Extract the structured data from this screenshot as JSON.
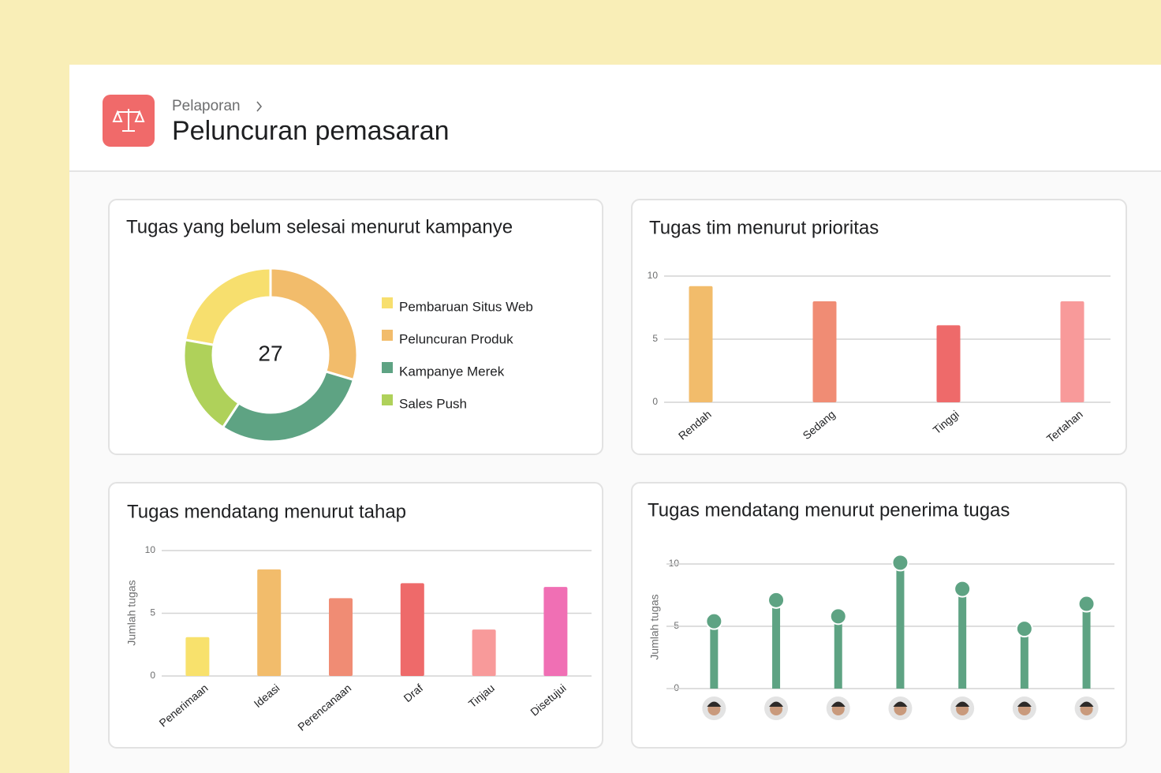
{
  "header": {
    "breadcrumb": "Pelaporan",
    "title": "Peluncuran pemasaran"
  },
  "chart_data": [
    {
      "type": "donut",
      "title": "Tugas yang belum selesai menurut kampanye",
      "total": 27,
      "categories": [
        "Pembaruan Situs Web",
        "Peluncuran Produk",
        "Kampanye Merek",
        "Sales Push"
      ],
      "values": [
        6,
        8,
        8,
        5
      ],
      "colors": [
        "#f7df6e",
        "#f2bc6b",
        "#5ea383",
        "#afd15a"
      ]
    },
    {
      "type": "bar",
      "title": "Tugas tim menurut prioritas",
      "categories": [
        "Rendah",
        "Sedang",
        "Tinggi",
        "Tertahan"
      ],
      "values": [
        9.2,
        8,
        6.1,
        8
      ],
      "colors": [
        "#f2bc6b",
        "#f08c74",
        "#ee6a6a",
        "#f89a9a"
      ],
      "ylim": [
        0,
        10
      ],
      "yticks": [
        0,
        5,
        10
      ],
      "grid": true
    },
    {
      "type": "bar",
      "title": "Tugas mendatang menurut tahap",
      "y_label": "Jumlah tugas",
      "categories": [
        "Penerimaan",
        "Ideasi",
        "Perencanaan",
        "Draf",
        "Tinjau",
        "Disetujui"
      ],
      "values": [
        3.1,
        8.5,
        6.2,
        7.4,
        3.7,
        7.1
      ],
      "colors": [
        "#f8e16c",
        "#f2bc6b",
        "#f08c74",
        "#ee6a6a",
        "#f89a9a",
        "#f06fb4"
      ],
      "ylim": [
        0,
        10
      ],
      "yticks": [
        0,
        5,
        10
      ],
      "grid": true
    },
    {
      "type": "lollipop",
      "title": "Tugas mendatang menurut penerima tugas",
      "y_label": "Jumlah tugas",
      "categories": [
        null,
        null,
        null,
        null,
        null,
        null,
        null
      ],
      "values": [
        5.4,
        7.1,
        5.8,
        10.1,
        8.0,
        4.8,
        6.8
      ],
      "color": "#5ea383",
      "ylim": [
        0,
        10
      ],
      "yticks": [
        0,
        5,
        10
      ],
      "grid": true
    }
  ]
}
